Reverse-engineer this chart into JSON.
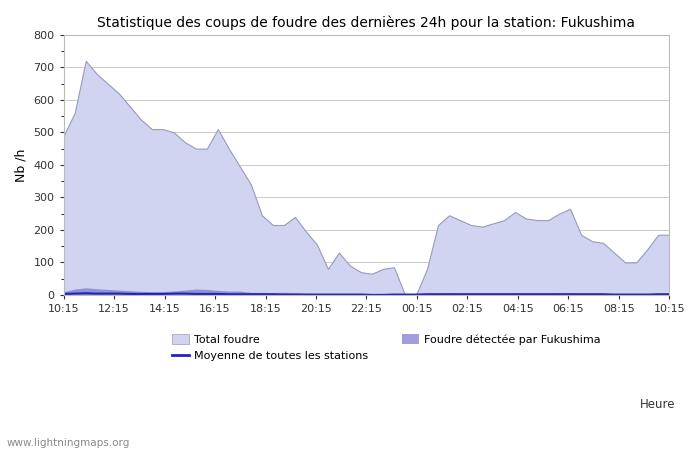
{
  "title": "Statistique des coups de foudre des dernières 24h pour la station: Fukushima",
  "ylabel": "Nb /h",
  "ylim": [
    0,
    800
  ],
  "yticks": [
    0,
    100,
    200,
    300,
    400,
    500,
    600,
    700,
    800
  ],
  "background_color": "#ffffff",
  "plot_bg_color": "#ffffff",
  "grid_color": "#cccccc",
  "watermark": "www.lightningmaps.org",
  "x_labels": [
    "10:15",
    "12:15",
    "14:15",
    "16:15",
    "18:15",
    "20:15",
    "22:15",
    "00:15",
    "02:15",
    "04:15",
    "06:15",
    "08:15",
    "10:15"
  ],
  "total_foudre_color": "#d0d4f0",
  "total_foudre_edge_color": "#9999bb",
  "station_color": "#7777cc",
  "station_alpha": 0.7,
  "moyenne_color": "#2222bb",
  "legend_labels": [
    "Total foudre",
    "Moyenne de toutes les stations",
    "Foudre détectée par Fukushima"
  ],
  "total_foudre": [
    490,
    560,
    720,
    680,
    650,
    620,
    580,
    540,
    510,
    510,
    500,
    470,
    450,
    450,
    510,
    450,
    395,
    340,
    245,
    215,
    215,
    240,
    195,
    155,
    80,
    130,
    90,
    70,
    65,
    80,
    85,
    0,
    0,
    80,
    215,
    245,
    230,
    215,
    210,
    220,
    230,
    255,
    235,
    230,
    230,
    250,
    265,
    185,
    165,
    160,
    130,
    100,
    100,
    140,
    185,
    185
  ],
  "station_foudre": [
    10,
    18,
    22,
    19,
    17,
    15,
    13,
    11,
    10,
    10,
    12,
    15,
    18,
    17,
    14,
    12,
    12,
    8,
    8,
    7,
    8,
    7,
    5,
    4,
    2,
    3,
    2,
    2,
    2,
    2,
    2,
    0,
    0,
    2,
    5,
    6,
    5,
    5,
    5,
    5,
    5,
    6,
    5,
    5,
    5,
    6,
    6,
    4,
    4,
    4,
    3,
    2,
    2,
    3,
    4,
    4
  ],
  "moyenne_foudre": [
    3,
    4,
    5,
    4,
    4,
    4,
    3,
    3,
    3,
    3,
    4,
    4,
    3,
    3,
    3,
    2,
    2,
    2,
    2,
    2,
    1,
    1,
    1,
    1,
    1,
    1,
    1,
    1,
    0,
    0,
    1,
    1,
    1,
    2,
    2,
    2,
    2,
    2,
    2,
    2,
    2,
    2,
    2,
    2,
    2,
    2,
    2,
    2,
    2,
    2,
    1,
    1,
    1,
    1,
    2,
    2
  ]
}
